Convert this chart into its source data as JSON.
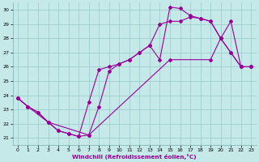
{
  "xlabel": "Windchill (Refroidissement éolien,°C)",
  "xlim": [
    -0.5,
    23.5
  ],
  "ylim": [
    20.5,
    30.5
  ],
  "xticks": [
    0,
    1,
    2,
    3,
    4,
    5,
    6,
    7,
    8,
    9,
    10,
    11,
    12,
    13,
    14,
    15,
    16,
    17,
    18,
    19,
    20,
    21,
    22,
    23
  ],
  "yticks": [
    21,
    22,
    23,
    24,
    25,
    26,
    27,
    28,
    29,
    30
  ],
  "bg_color": "#c5e8e8",
  "grid_color": "#9ecece",
  "line_color": "#990099",
  "line1_x": [
    0,
    1,
    2,
    3,
    4,
    5,
    6,
    7,
    8,
    9,
    10,
    11,
    12,
    13,
    14,
    15,
    16,
    17,
    18,
    19,
    20,
    21,
    22,
    23
  ],
  "line1_y": [
    23.8,
    23.2,
    22.8,
    22.1,
    21.5,
    21.3,
    21.1,
    21.2,
    23.2,
    25.7,
    26.2,
    26.5,
    27.0,
    27.5,
    26.5,
    30.2,
    30.1,
    29.6,
    29.4,
    29.2,
    28.0,
    27.0,
    26.0,
    26.0
  ],
  "line2_x": [
    0,
    1,
    2,
    3,
    4,
    5,
    6,
    7,
    8,
    9,
    10,
    11,
    12,
    13,
    14,
    15,
    16,
    17,
    18,
    19,
    20,
    21,
    22,
    23
  ],
  "line2_y": [
    23.8,
    23.2,
    22.8,
    22.1,
    21.5,
    21.3,
    21.1,
    23.5,
    25.8,
    26.0,
    26.2,
    26.5,
    27.0,
    27.5,
    29.0,
    29.2,
    29.2,
    29.5,
    29.4,
    29.2,
    28.0,
    27.0,
    26.0,
    26.0
  ],
  "line3_x": [
    0,
    1,
    3,
    7,
    15,
    19,
    20,
    21,
    22,
    23
  ],
  "line3_y": [
    23.8,
    23.2,
    22.1,
    21.2,
    26.5,
    26.5,
    28.0,
    29.2,
    26.0,
    26.0
  ]
}
